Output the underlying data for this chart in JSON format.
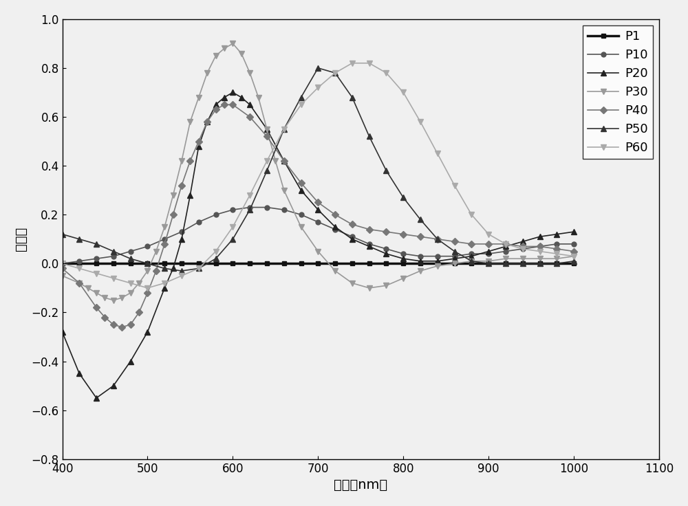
{
  "title": "",
  "xlabel": "波长（nm）",
  "ylabel": "偏振度",
  "xlim": [
    400,
    1100
  ],
  "ylim": [
    -0.8,
    1.0
  ],
  "xticks": [
    400,
    500,
    600,
    700,
    800,
    900,
    1000,
    1100
  ],
  "yticks": [
    -0.8,
    -0.6,
    -0.4,
    -0.2,
    0.0,
    0.2,
    0.4,
    0.6,
    0.8,
    1.0
  ],
  "series": {
    "P1": {
      "color": "#111111",
      "marker": "s",
      "markersize": 5,
      "linewidth": 2.5,
      "x": [
        400,
        420,
        440,
        460,
        480,
        500,
        520,
        540,
        560,
        580,
        600,
        620,
        640,
        660,
        680,
        700,
        720,
        740,
        760,
        780,
        800,
        820,
        840,
        860,
        880,
        900,
        920,
        940,
        960,
        980,
        1000
      ],
      "y": [
        0.0,
        0.0,
        0.0,
        0.0,
        0.0,
        0.0,
        0.0,
        0.0,
        0.0,
        0.0,
        0.0,
        0.0,
        0.0,
        0.0,
        0.0,
        0.0,
        0.0,
        0.0,
        0.0,
        0.0,
        0.0,
        0.0,
        0.0,
        0.0,
        0.0,
        0.0,
        0.0,
        0.0,
        0.0,
        0.0,
        0.0
      ]
    },
    "P10": {
      "color": "#555555",
      "marker": "o",
      "markersize": 5,
      "linewidth": 1.2,
      "x": [
        400,
        420,
        440,
        460,
        480,
        500,
        520,
        540,
        560,
        580,
        600,
        620,
        640,
        660,
        680,
        700,
        720,
        740,
        760,
        780,
        800,
        820,
        840,
        860,
        880,
        900,
        920,
        940,
        960,
        980,
        1000
      ],
      "y": [
        0.0,
        0.01,
        0.02,
        0.03,
        0.05,
        0.07,
        0.1,
        0.13,
        0.17,
        0.2,
        0.22,
        0.23,
        0.23,
        0.22,
        0.2,
        0.17,
        0.14,
        0.11,
        0.08,
        0.06,
        0.04,
        0.03,
        0.03,
        0.03,
        0.04,
        0.04,
        0.05,
        0.06,
        0.07,
        0.08,
        0.08
      ]
    },
    "P20": {
      "color": "#222222",
      "marker": "^",
      "markersize": 6,
      "linewidth": 1.2,
      "x": [
        400,
        420,
        440,
        460,
        480,
        500,
        520,
        530,
        540,
        550,
        560,
        570,
        580,
        590,
        600,
        610,
        620,
        640,
        660,
        680,
        700,
        720,
        740,
        760,
        780,
        800,
        820,
        840,
        860,
        880,
        900,
        920,
        940,
        960,
        980,
        1000
      ],
      "y": [
        -0.28,
        -0.45,
        -0.55,
        -0.5,
        -0.4,
        -0.28,
        -0.1,
        -0.02,
        0.1,
        0.28,
        0.48,
        0.58,
        0.65,
        0.68,
        0.7,
        0.68,
        0.65,
        0.55,
        0.42,
        0.3,
        0.22,
        0.15,
        0.1,
        0.07,
        0.04,
        0.02,
        0.01,
        0.01,
        0.02,
        0.03,
        0.05,
        0.07,
        0.09,
        0.11,
        0.12,
        0.13
      ]
    },
    "P30": {
      "color": "#999999",
      "marker": "v",
      "markersize": 6,
      "linewidth": 1.2,
      "x": [
        400,
        420,
        430,
        440,
        450,
        460,
        470,
        480,
        490,
        500,
        510,
        520,
        530,
        540,
        550,
        560,
        570,
        580,
        590,
        600,
        610,
        620,
        630,
        640,
        650,
        660,
        680,
        700,
        720,
        740,
        760,
        780,
        800,
        820,
        840,
        860,
        880,
        900,
        920,
        940,
        960,
        980,
        1000
      ],
      "y": [
        -0.05,
        -0.08,
        -0.1,
        -0.12,
        -0.14,
        -0.15,
        -0.14,
        -0.12,
        -0.08,
        -0.03,
        0.05,
        0.15,
        0.28,
        0.42,
        0.58,
        0.68,
        0.78,
        0.85,
        0.88,
        0.9,
        0.86,
        0.78,
        0.68,
        0.55,
        0.42,
        0.3,
        0.15,
        0.05,
        -0.03,
        -0.08,
        -0.1,
        -0.09,
        -0.06,
        -0.03,
        -0.01,
        0.0,
        0.01,
        0.01,
        0.02,
        0.02,
        0.02,
        0.02,
        0.03
      ]
    },
    "P40": {
      "color": "#777777",
      "marker": "D",
      "markersize": 5,
      "linewidth": 1.2,
      "x": [
        400,
        420,
        440,
        450,
        460,
        470,
        480,
        490,
        500,
        510,
        520,
        530,
        540,
        550,
        560,
        570,
        580,
        590,
        600,
        620,
        640,
        660,
        680,
        700,
        720,
        740,
        760,
        780,
        800,
        820,
        840,
        860,
        880,
        900,
        920,
        940,
        960,
        980,
        1000
      ],
      "y": [
        -0.02,
        -0.08,
        -0.18,
        -0.22,
        -0.25,
        -0.26,
        -0.25,
        -0.2,
        -0.12,
        -0.03,
        0.08,
        0.2,
        0.32,
        0.42,
        0.5,
        0.58,
        0.63,
        0.65,
        0.65,
        0.6,
        0.52,
        0.42,
        0.33,
        0.25,
        0.2,
        0.16,
        0.14,
        0.13,
        0.12,
        0.11,
        0.1,
        0.09,
        0.08,
        0.08,
        0.08,
        0.07,
        0.07,
        0.06,
        0.05
      ]
    },
    "P50": {
      "color": "#333333",
      "marker": "^",
      "markersize": 6,
      "linewidth": 1.2,
      "x": [
        400,
        420,
        440,
        460,
        480,
        500,
        520,
        540,
        560,
        580,
        600,
        620,
        640,
        660,
        680,
        700,
        720,
        740,
        760,
        780,
        800,
        820,
        840,
        860,
        880,
        900,
        920,
        940,
        960,
        980,
        1000
      ],
      "y": [
        0.12,
        0.1,
        0.08,
        0.05,
        0.02,
        0.0,
        -0.02,
        -0.03,
        -0.02,
        0.02,
        0.1,
        0.22,
        0.38,
        0.55,
        0.68,
        0.8,
        0.78,
        0.68,
        0.52,
        0.38,
        0.27,
        0.18,
        0.1,
        0.05,
        0.01,
        0.0,
        0.0,
        0.0,
        0.0,
        0.0,
        0.01
      ]
    },
    "P60": {
      "color": "#aaaaaa",
      "marker": "v",
      "markersize": 6,
      "linewidth": 1.2,
      "x": [
        400,
        420,
        440,
        460,
        480,
        500,
        520,
        540,
        560,
        580,
        600,
        620,
        640,
        660,
        680,
        700,
        720,
        740,
        760,
        780,
        800,
        820,
        840,
        860,
        880,
        900,
        920,
        940,
        960,
        980,
        1000
      ],
      "y": [
        0.0,
        -0.02,
        -0.04,
        -0.06,
        -0.08,
        -0.1,
        -0.08,
        -0.05,
        -0.02,
        0.05,
        0.15,
        0.28,
        0.42,
        0.55,
        0.65,
        0.72,
        0.78,
        0.82,
        0.82,
        0.78,
        0.7,
        0.58,
        0.45,
        0.32,
        0.2,
        0.12,
        0.08,
        0.06,
        0.05,
        0.04,
        0.03
      ]
    }
  },
  "background_color": "#f0f0f0",
  "legend_loc": "upper right",
  "legend_fontsize": 13,
  "axis_fontsize": 14,
  "tick_fontsize": 12
}
